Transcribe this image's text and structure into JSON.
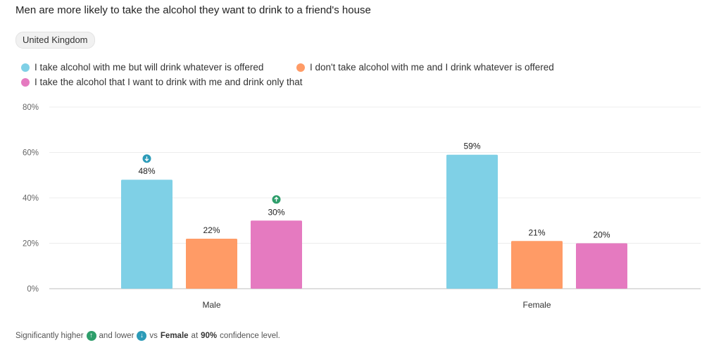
{
  "title": "Men are more likely to take the alcohol they want to drink to a friend's house",
  "filter_chip": "United Kingdom",
  "colors": {
    "series1": "#7fd0e6",
    "series2": "#ff9b66",
    "series3": "#e57ac0",
    "higher": "#2e9e6b",
    "lower": "#2c9bb8"
  },
  "chart_data": {
    "type": "bar",
    "title": "Men are more likely to take the alcohol they want to drink to a friend's house",
    "categories": [
      "Male",
      "Female"
    ],
    "series": [
      {
        "name": "I take alcohol with me but will drink whatever is offered",
        "values": [
          48,
          59
        ],
        "labels": [
          "48%",
          "59%"
        ],
        "significance": [
          "lower",
          null
        ]
      },
      {
        "name": "I don't take alcohol with me and I drink whatever is offered",
        "values": [
          22,
          21
        ],
        "labels": [
          "22%",
          "21%"
        ],
        "significance": [
          null,
          null
        ]
      },
      {
        "name": "I take the alcohol that I want to drink with me and drink only that",
        "values": [
          30,
          20
        ],
        "labels": [
          "30%",
          "20%"
        ],
        "significance": [
          "higher",
          null
        ]
      }
    ],
    "ylim": [
      0,
      80
    ],
    "yticks": [
      "0%",
      "20%",
      "40%",
      "60%",
      "80%"
    ],
    "ytick_values": [
      0,
      20,
      40,
      60,
      80
    ],
    "grid": true,
    "legend": "top-left"
  },
  "footnote": {
    "part1": "Significantly higher",
    "part2": "and lower",
    "part3": "vs",
    "bold1": "Female",
    "part4": "at",
    "bold2": "90%",
    "part5": "confidence level."
  }
}
